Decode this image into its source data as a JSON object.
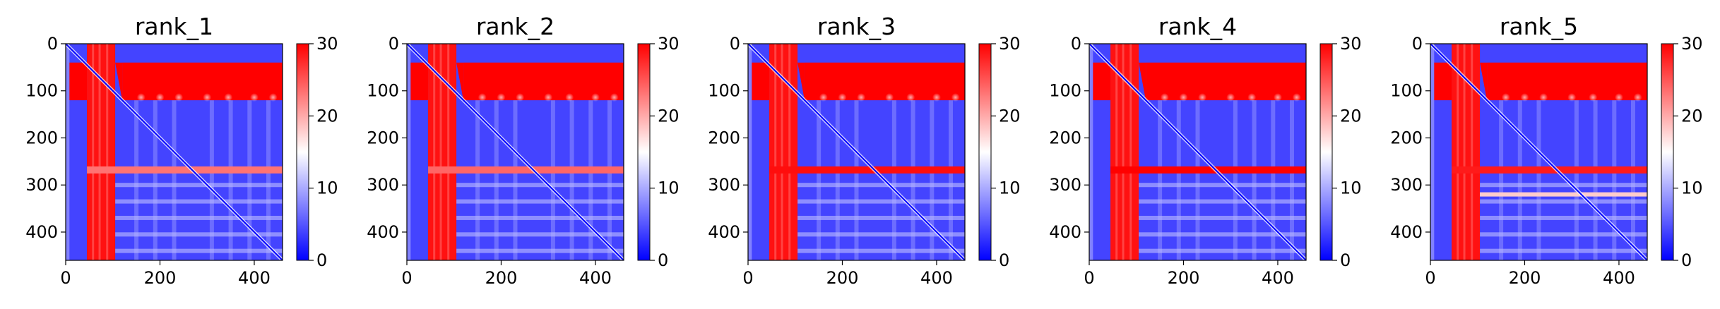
{
  "chart_data": [
    {
      "type": "heatmap",
      "title": "rank_1",
      "xlabel": "",
      "ylabel": "",
      "xlim": [
        0,
        460
      ],
      "ylim": [
        460,
        0
      ],
      "xticks": [
        0,
        200,
        400
      ],
      "yticks": [
        0,
        100,
        200,
        300,
        400
      ],
      "colorbar": {
        "range": [
          0,
          30
        ],
        "ticks": [
          0,
          10,
          20,
          30
        ],
        "colors": [
          "#0000ff",
          "#ffffff",
          "#ff0000"
        ]
      },
      "diagonal": true,
      "cross_band_x": [
        45,
        105
      ],
      "upper_band_y": [
        40,
        120
      ],
      "upper_band_x_from": 120,
      "row_stripe_y": 268,
      "row_stripe_strength": 0.55,
      "extra_stripes": [],
      "faint_rows": [
        300,
        335,
        370,
        405,
        440
      ]
    },
    {
      "type": "heatmap",
      "title": "rank_2",
      "xlabel": "",
      "ylabel": "",
      "xlim": [
        0,
        460
      ],
      "ylim": [
        460,
        0
      ],
      "xticks": [
        0,
        200,
        400
      ],
      "yticks": [
        0,
        100,
        200,
        300,
        400
      ],
      "colorbar": {
        "range": [
          0,
          30
        ],
        "ticks": [
          0,
          10,
          20,
          30
        ],
        "colors": [
          "#0000ff",
          "#ffffff",
          "#ff0000"
        ]
      },
      "diagonal": true,
      "cross_band_x": [
        45,
        105
      ],
      "upper_band_y": [
        40,
        120
      ],
      "upper_band_x_from": 120,
      "row_stripe_y": 268,
      "row_stripe_strength": 0.6,
      "extra_stripes": [],
      "faint_rows": [
        300,
        335,
        370,
        405,
        440
      ]
    },
    {
      "type": "heatmap",
      "title": "rank_3",
      "xlabel": "",
      "ylabel": "",
      "xlim": [
        0,
        460
      ],
      "ylim": [
        460,
        0
      ],
      "xticks": [
        0,
        200,
        400
      ],
      "yticks": [
        0,
        100,
        200,
        300,
        400
      ],
      "colorbar": {
        "range": [
          0,
          30
        ],
        "ticks": [
          0,
          10,
          20,
          30
        ],
        "colors": [
          "#0000ff",
          "#ffffff",
          "#ff0000"
        ]
      },
      "diagonal": true,
      "cross_band_x": [
        45,
        105
      ],
      "upper_band_y": [
        40,
        120
      ],
      "upper_band_x_from": 120,
      "row_stripe_y": 268,
      "row_stripe_strength": 0.95,
      "extra_stripes": [],
      "faint_rows": [
        300,
        335,
        370,
        405,
        440
      ]
    },
    {
      "type": "heatmap",
      "title": "rank_4",
      "xlabel": "",
      "ylabel": "",
      "xlim": [
        0,
        460
      ],
      "ylim": [
        460,
        0
      ],
      "xticks": [
        0,
        200,
        400
      ],
      "yticks": [
        0,
        100,
        200,
        300,
        400
      ],
      "colorbar": {
        "range": [
          0,
          30
        ],
        "ticks": [
          0,
          10,
          20,
          30
        ],
        "colors": [
          "#0000ff",
          "#ffffff",
          "#ff0000"
        ]
      },
      "diagonal": true,
      "cross_band_x": [
        45,
        105
      ],
      "upper_band_y": [
        40,
        120
      ],
      "upper_band_x_from": 120,
      "row_stripe_y": 268,
      "row_stripe_strength": 1.0,
      "extra_stripes": [],
      "faint_rows": [
        300,
        335,
        370,
        405,
        440
      ]
    },
    {
      "type": "heatmap",
      "title": "rank_5",
      "xlabel": "",
      "ylabel": "",
      "xlim": [
        0,
        460
      ],
      "ylim": [
        460,
        0
      ],
      "xticks": [
        0,
        200,
        400
      ],
      "yticks": [
        0,
        100,
        200,
        300,
        400
      ],
      "colorbar": {
        "range": [
          0,
          30
        ],
        "ticks": [
          0,
          10,
          20,
          30
        ],
        "colors": [
          "#0000ff",
          "#ffffff",
          "#ff0000"
        ]
      },
      "diagonal": true,
      "cross_band_x": [
        45,
        105
      ],
      "upper_band_y": [
        40,
        120
      ],
      "upper_band_x_from": 120,
      "row_stripe_y": 268,
      "row_stripe_strength": 0.9,
      "extra_stripes": [
        320
      ],
      "faint_rows": [
        300,
        335,
        370,
        405,
        440
      ]
    }
  ]
}
